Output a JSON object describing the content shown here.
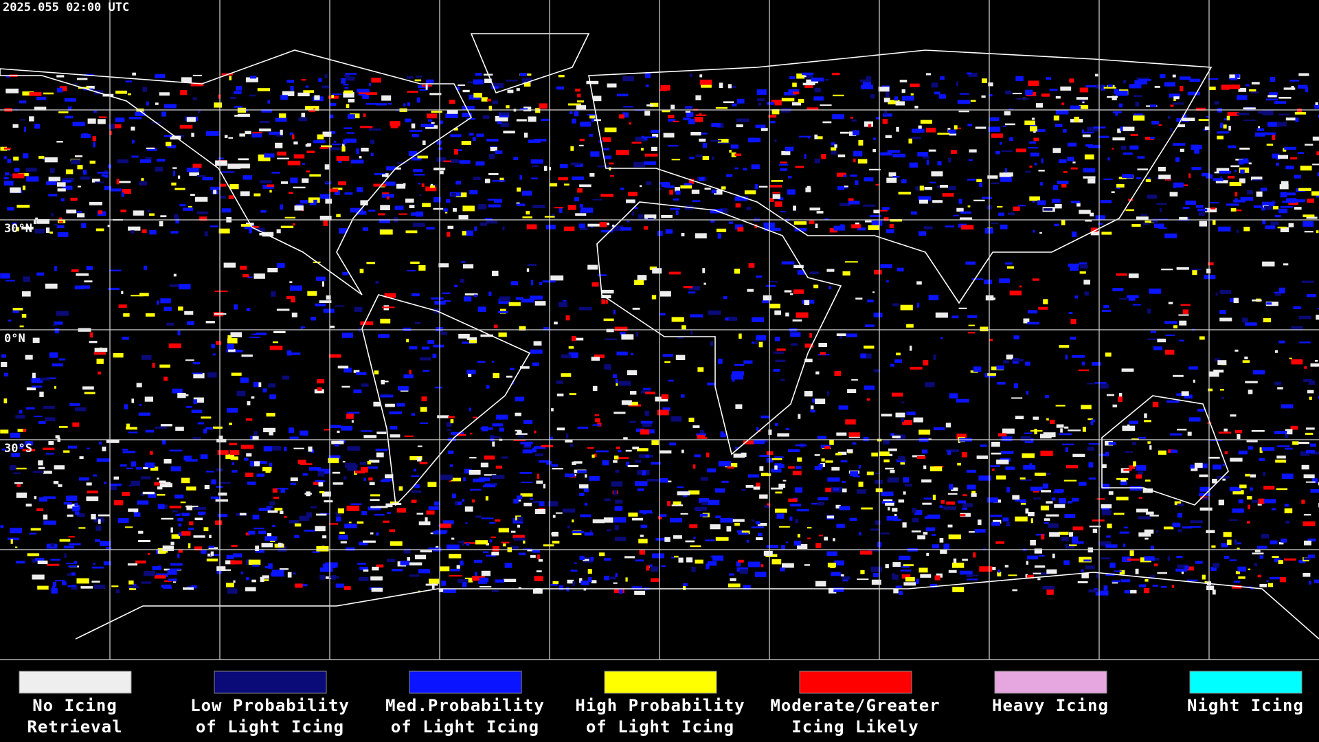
{
  "header": {
    "timestamp": "2025.055 02:00 UTC"
  },
  "map": {
    "latitude_labels": [
      "30°N",
      "0°N",
      "30°S"
    ]
  },
  "legend": {
    "items": [
      {
        "label_lines": [
          "No Icing",
          "Retrieval"
        ],
        "color": "#eeeeee"
      },
      {
        "label_lines": [
          "Low Probability",
          "of Light Icing"
        ],
        "color": "#0a0a78"
      },
      {
        "label_lines": [
          "Med.Probability",
          "of Light Icing"
        ],
        "color": "#0a14ff"
      },
      {
        "label_lines": [
          "High Probability",
          "of Light Icing"
        ],
        "color": "#ffff00"
      },
      {
        "label_lines": [
          "Moderate/Greater",
          "Icing Likely"
        ],
        "color": "#ff0000"
      },
      {
        "label_lines": [
          "Heavy Icing"
        ],
        "color": "#e6a6e0"
      },
      {
        "label_lines": [
          "Night Icing"
        ],
        "color": "#00ffff"
      }
    ]
  }
}
